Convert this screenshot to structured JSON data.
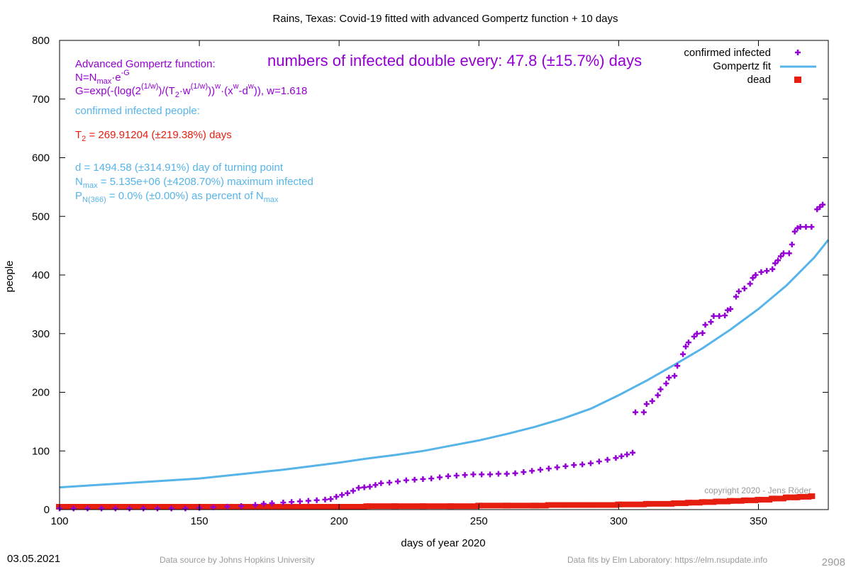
{
  "chart_data": {
    "type": "scatter",
    "title": "Rains,  Texas: Covid-19 fitted with advanced Gompertz function + 10 days",
    "xlabel": "days of year 2020",
    "ylabel": "people",
    "xlim": [
      100,
      375
    ],
    "ylim": [
      0,
      800
    ],
    "x_ticks": [
      100,
      150,
      200,
      250,
      300,
      350
    ],
    "y_ticks": [
      0,
      100,
      200,
      300,
      400,
      500,
      600,
      700,
      800
    ],
    "grid": false,
    "legend_position": "top-right",
    "legend": [
      "confirmed infected",
      "Gompertz fit",
      "dead"
    ],
    "colors": {
      "infected": "#9400d3",
      "fit": "#56b4e9",
      "dead": "#e51e10"
    },
    "series": [
      {
        "name": "confirmed infected",
        "marker": "plus",
        "points": [
          [
            100,
            2
          ],
          [
            105,
            2
          ],
          [
            110,
            2
          ],
          [
            115,
            2
          ],
          [
            120,
            2
          ],
          [
            125,
            2
          ],
          [
            130,
            2
          ],
          [
            135,
            2
          ],
          [
            140,
            2
          ],
          [
            145,
            2
          ],
          [
            150,
            3
          ],
          [
            155,
            4
          ],
          [
            160,
            5
          ],
          [
            165,
            6
          ],
          [
            170,
            8
          ],
          [
            173,
            10
          ],
          [
            176,
            11
          ],
          [
            180,
            12
          ],
          [
            183,
            13
          ],
          [
            186,
            14
          ],
          [
            189,
            15
          ],
          [
            192,
            16
          ],
          [
            195,
            17
          ],
          [
            197,
            18
          ],
          [
            199,
            22
          ],
          [
            201,
            25
          ],
          [
            203,
            28
          ],
          [
            205,
            32
          ],
          [
            207,
            37
          ],
          [
            209,
            38
          ],
          [
            211,
            39
          ],
          [
            213,
            42
          ],
          [
            215,
            45
          ],
          [
            218,
            46
          ],
          [
            221,
            48
          ],
          [
            224,
            50
          ],
          [
            227,
            51
          ],
          [
            230,
            52
          ],
          [
            233,
            53
          ],
          [
            236,
            55
          ],
          [
            239,
            57
          ],
          [
            242,
            58
          ],
          [
            245,
            59
          ],
          [
            248,
            60
          ],
          [
            251,
            60
          ],
          [
            254,
            60
          ],
          [
            257,
            61
          ],
          [
            260,
            61
          ],
          [
            263,
            62
          ],
          [
            266,
            64
          ],
          [
            269,
            66
          ],
          [
            272,
            68
          ],
          [
            275,
            70
          ],
          [
            278,
            72
          ],
          [
            281,
            74
          ],
          [
            284,
            76
          ],
          [
            287,
            77
          ],
          [
            290,
            79
          ],
          [
            293,
            82
          ],
          [
            296,
            85
          ],
          [
            299,
            88
          ],
          [
            301,
            91
          ],
          [
            303,
            94
          ],
          [
            305,
            97
          ],
          [
            306,
            166
          ],
          [
            309,
            166
          ],
          [
            310,
            180
          ],
          [
            312,
            185
          ],
          [
            314,
            195
          ],
          [
            315,
            205
          ],
          [
            317,
            215
          ],
          [
            318,
            225
          ],
          [
            320,
            228
          ],
          [
            321,
            245
          ],
          [
            323,
            265
          ],
          [
            324,
            278
          ],
          [
            325,
            285
          ],
          [
            327,
            295
          ],
          [
            328,
            300
          ],
          [
            330,
            301
          ],
          [
            331,
            315
          ],
          [
            333,
            320
          ],
          [
            334,
            330
          ],
          [
            336,
            330
          ],
          [
            338,
            331
          ],
          [
            339,
            340
          ],
          [
            340,
            342
          ],
          [
            342,
            363
          ],
          [
            343,
            372
          ],
          [
            345,
            377
          ],
          [
            347,
            385
          ],
          [
            348,
            395
          ],
          [
            349,
            400
          ],
          [
            351,
            405
          ],
          [
            353,
            407
          ],
          [
            355,
            410
          ],
          [
            356,
            420
          ],
          [
            357,
            425
          ],
          [
            358,
            432
          ],
          [
            359,
            437
          ],
          [
            361,
            437
          ],
          [
            362,
            452
          ],
          [
            363,
            474
          ],
          [
            364,
            480
          ],
          [
            365,
            482
          ],
          [
            367,
            482
          ],
          [
            369,
            482
          ],
          [
            371,
            512
          ],
          [
            372,
            516
          ],
          [
            373,
            520
          ]
        ]
      },
      {
        "name": "Gompertz fit",
        "line": true,
        "points": [
          [
            100,
            38
          ],
          [
            110,
            41
          ],
          [
            120,
            44
          ],
          [
            130,
            47
          ],
          [
            140,
            50
          ],
          [
            150,
            53
          ],
          [
            160,
            58
          ],
          [
            170,
            63
          ],
          [
            180,
            68
          ],
          [
            190,
            74
          ],
          [
            200,
            80
          ],
          [
            210,
            87
          ],
          [
            220,
            93
          ],
          [
            230,
            100
          ],
          [
            240,
            109
          ],
          [
            250,
            118
          ],
          [
            260,
            129
          ],
          [
            270,
            141
          ],
          [
            280,
            155
          ],
          [
            290,
            172
          ],
          [
            300,
            195
          ],
          [
            310,
            220
          ],
          [
            320,
            247
          ],
          [
            330,
            275
          ],
          [
            340,
            307
          ],
          [
            350,
            342
          ],
          [
            360,
            382
          ],
          [
            370,
            430
          ],
          [
            375,
            460
          ]
        ]
      },
      {
        "name": "dead",
        "marker": "square",
        "points": [
          [
            100,
            0
          ],
          [
            120,
            0
          ],
          [
            140,
            0
          ],
          [
            160,
            0
          ],
          [
            180,
            0
          ],
          [
            200,
            0
          ],
          [
            210,
            1
          ],
          [
            220,
            1
          ],
          [
            230,
            1
          ],
          [
            240,
            1
          ],
          [
            250,
            2
          ],
          [
            260,
            2
          ],
          [
            270,
            2
          ],
          [
            275,
            3
          ],
          [
            280,
            3
          ],
          [
            290,
            3
          ],
          [
            300,
            4
          ],
          [
            310,
            5
          ],
          [
            320,
            6
          ],
          [
            325,
            7
          ],
          [
            330,
            8
          ],
          [
            335,
            9
          ],
          [
            340,
            10
          ],
          [
            345,
            11
          ],
          [
            350,
            12
          ],
          [
            355,
            14
          ],
          [
            360,
            16
          ],
          [
            363,
            16
          ],
          [
            365,
            17
          ],
          [
            369,
            18
          ]
        ]
      }
    ],
    "annotations": {
      "double_every": "numbers of infected double every: 47.8 (±15.7%) days",
      "gompertz_title": "Advanced Gompertz function:",
      "formula_n": {
        "a": "N=N",
        "sub": "max",
        "b": "·e",
        "sup": "-G"
      },
      "formula_g": {
        "a": " G=exp(-(log(2",
        "sup1": "(1/w)",
        "b": ")/(T",
        "sub1": "2",
        "c": "·w",
        "sup2": "(1/w)",
        "d": "))",
        "sup3": "w",
        "e": "·(x",
        "sup4": "w",
        "f": "-d",
        "sup5": "w",
        "g": ")), w=1.618"
      },
      "confirmed_label": "confirmed infected people:",
      "t2": {
        "a": "T",
        "sub": "2",
        "b": " = 269.91204 (±219.38%) days"
      },
      "turning_point": "d = 1494.58 (±314.91%) day of turning point",
      "nmax": {
        "a": "N",
        "sub": "max",
        "b": " = 5.135e+06 (±4208.70%) maximum infected"
      },
      "pn": {
        "a": "P",
        "sub": "N(366)",
        "b": " = 0.0% (±0.00%) as percent of N",
        "sub2": "max"
      }
    }
  },
  "copyright": "copyright 2020 - Jens Röder",
  "footer": {
    "date": "03.05.2021",
    "source": "Data source by Johns Hopkins University",
    "fits": "Data fits by Elm Laboratory: https://elm.nsupdate.info",
    "number": "2908"
  }
}
